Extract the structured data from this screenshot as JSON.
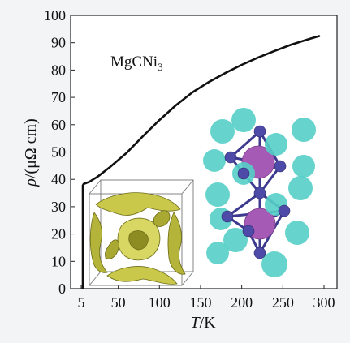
{
  "page": {
    "background": "#f3f4f6"
  },
  "chart_data": {
    "type": "line",
    "annotation": {
      "base": "MgCNi",
      "sub": "3"
    },
    "xlabel": {
      "symbol": "T",
      "unit": "/K"
    },
    "ylabel": {
      "symbol": "ρ",
      "unit": "/(μΩ cm)"
    },
    "xlim": [
      5,
      300
    ],
    "ylim": [
      0,
      100
    ],
    "xticks": [
      5,
      50,
      100,
      150,
      200,
      250,
      300
    ],
    "yticks": [
      0,
      10,
      20,
      30,
      40,
      50,
      60,
      70,
      80,
      90,
      100
    ],
    "grid": false,
    "series": [
      {
        "color": "#111111",
        "x": [
          7,
          7,
          8,
          15,
          25,
          40,
          60,
          80,
          100,
          120,
          140,
          160,
          180,
          200,
          220,
          240,
          260,
          280,
          295
        ],
        "y": [
          0,
          37.8,
          38.3,
          39.1,
          41,
          44.5,
          49.6,
          55.8,
          61.7,
          67.1,
          71.8,
          75.6,
          78.9,
          81.9,
          84.6,
          87,
          89.3,
          91.2,
          92.5
        ]
      }
    ],
    "insets": [
      {
        "subject": "fermi-surface-box",
        "colors": {
          "surface": "#c9c84a",
          "shade": "#8d8c22",
          "box": "#777777"
        }
      },
      {
        "subject": "crystal-structure",
        "colors": {
          "mg": "#55cfc7",
          "ni": "#4d4aa8",
          "c": "#a55bb5"
        }
      }
    ]
  }
}
